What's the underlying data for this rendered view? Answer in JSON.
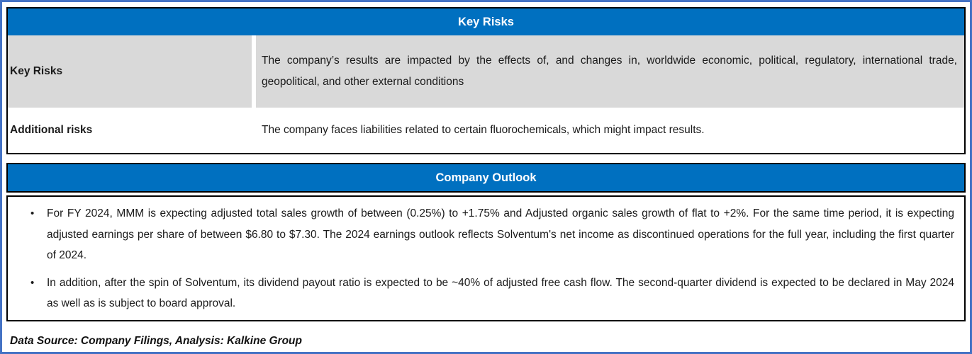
{
  "colors": {
    "frame_blue": "#4472C4",
    "header_blue": "#0070C0",
    "cell_gray": "#D9D9D9",
    "border_black": "#000000"
  },
  "bullet_icon": "•",
  "key_risks_table": {
    "header": "Key Risks",
    "rows": [
      {
        "label": "Key Risks",
        "text": "The company’s results are impacted by the effects of, and changes in, worldwide economic, political, regulatory, international trade, geopolitical, and other external conditions"
      },
      {
        "label": "Additional risks",
        "text": "The company faces liabilities related to certain fluorochemicals, which might impact results."
      }
    ]
  },
  "outlook_table": {
    "header": "Company Outlook",
    "bullets": [
      "For FY 2024, MMM is expecting adjusted total sales growth of between (0.25%) to +1.75% and Adjusted organic sales growth of flat to +2%. For the same time period, it is expecting adjusted earnings per share of between $6.80 to $7.30. The 2024 earnings outlook reflects Solventum's net income as discontinued operations for the full year, including the first quarter of 2024.",
      "In addition, after the spin of Solventum, its dividend payout ratio is expected to be ~40% of adjusted free cash flow. The second-quarter dividend is expected to be declared in May 2024 as well as is subject to board approval."
    ]
  },
  "footer": {
    "text": "Data Source: Company Filings, Analysis: Kalkine Group"
  }
}
